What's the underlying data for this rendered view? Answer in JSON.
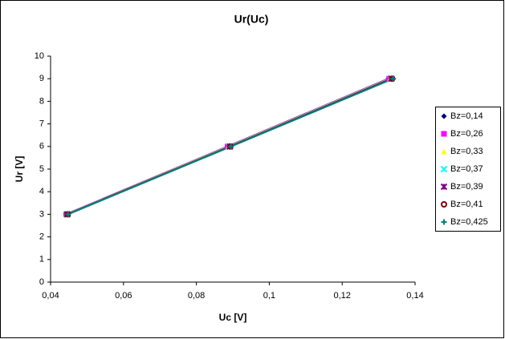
{
  "chart_data": {
    "type": "scatter",
    "title": "Ur(Uc)",
    "x_label": "Uc [V]",
    "y_label": "Ur [V]",
    "xlim": [
      0.04,
      0.14
    ],
    "xticks": [
      {
        "value": 0.04,
        "label": "0,04"
      },
      {
        "value": 0.06,
        "label": "0,06"
      },
      {
        "value": 0.08,
        "label": "0,08"
      },
      {
        "value": 0.1,
        "label": "0,1"
      },
      {
        "value": 0.12,
        "label": "0,12"
      },
      {
        "value": 0.14,
        "label": "0,14"
      }
    ],
    "ylim": [
      0,
      10
    ],
    "yticks": [
      0,
      1,
      2,
      3,
      4,
      5,
      6,
      7,
      8,
      9,
      10
    ],
    "grid": false,
    "legend": "right",
    "series": [
      {
        "name": "Bz=0,14",
        "color": "#000080",
        "marker": "diamond",
        "x": [
          0.0442,
          0.0885,
          0.1327
        ],
        "values": [
          3,
          6,
          9
        ]
      },
      {
        "name": "Bz=0,26",
        "color": "#ff00ff",
        "marker": "square",
        "x": [
          0.0443,
          0.0886,
          0.1329
        ],
        "values": [
          3,
          6,
          9
        ]
      },
      {
        "name": "Bz=0,33",
        "color": "#ffff00",
        "marker": "triangle",
        "x": [
          0.0444,
          0.0888,
          0.1331
        ],
        "values": [
          3,
          6,
          9
        ]
      },
      {
        "name": "Bz=0,37",
        "color": "#00ffff",
        "marker": "cross",
        "x": [
          0.0445,
          0.089,
          0.1333
        ],
        "values": [
          3,
          6,
          9
        ]
      },
      {
        "name": "Bz=0,39",
        "color": "#800080",
        "marker": "star",
        "x": [
          0.0446,
          0.0892,
          0.1335
        ],
        "values": [
          3,
          6,
          9
        ]
      },
      {
        "name": "Bz=0,41",
        "color": "#800000",
        "marker": "circle",
        "x": [
          0.0447,
          0.0893,
          0.1337
        ],
        "values": [
          3,
          6,
          9
        ]
      },
      {
        "name": "Bz=0,425",
        "color": "#008080",
        "marker": "plus",
        "x": [
          0.0448,
          0.0895,
          0.134
        ],
        "values": [
          3,
          6,
          9
        ]
      }
    ]
  }
}
